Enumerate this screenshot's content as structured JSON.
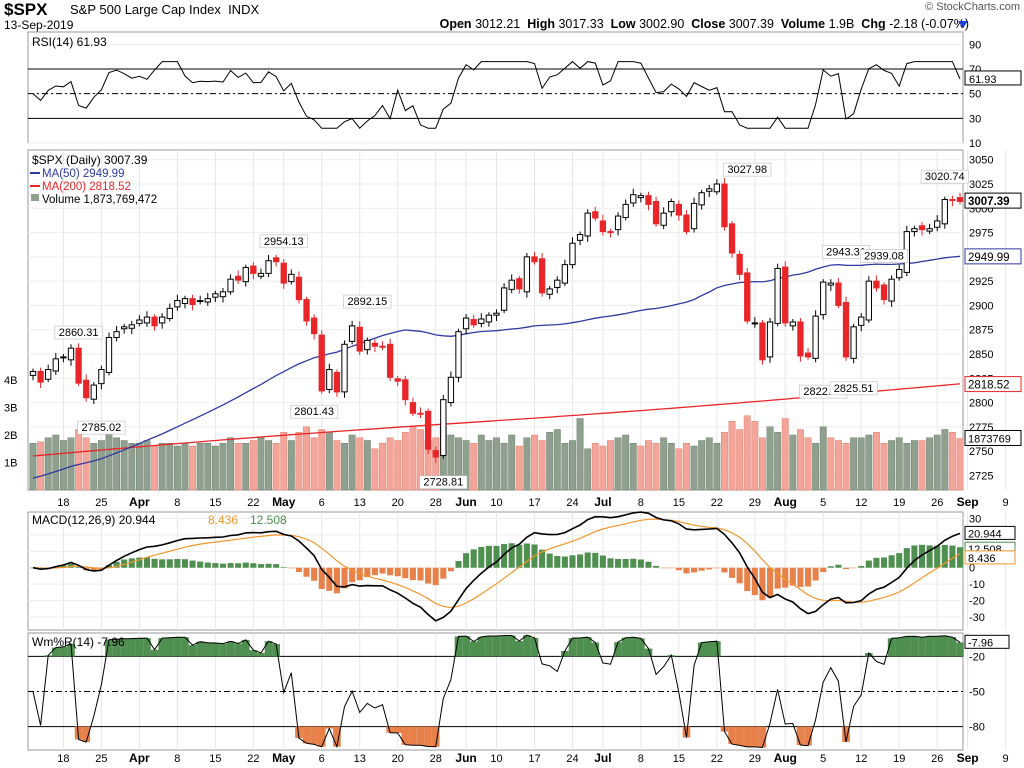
{
  "header": {
    "symbol": "$SPX",
    "name": "S&P 500 Large Cap Index",
    "exchange": "INDX",
    "date": "13-Sep-2019",
    "credit": "© StockCharts.com",
    "open_label": "Open",
    "open": "3012.21",
    "high_label": "High",
    "high": "3017.33",
    "low_label": "Low",
    "low": "3002.90",
    "close_label": "Close",
    "close": "3007.39",
    "volume_label": "Volume",
    "volume": "1.9B",
    "chg_label": "Chg",
    "chg": "-2.18 (-0.07%)"
  },
  "colors": {
    "up": "#000000",
    "down": "#e8262a",
    "ma50": "#2f3aa0",
    "ma200": "#e8262a",
    "vol_up": "#8fa08f",
    "vol_down": "#f4a59a",
    "macd_hist_pos": "#4f8f4f",
    "macd_hist_neg": "#e8804a",
    "signal": "#f0962e",
    "wr_fill_hi": "#4f8f4f",
    "wr_fill_lo": "#e8804a"
  },
  "chart_data": [
    {
      "panel": "RSI",
      "type": "line",
      "legend": "RSI(14) 61.93",
      "ylim": [
        10,
        100
      ],
      "yticks": [
        "90",
        "70",
        "50",
        "30",
        "10"
      ],
      "reference_lines": [
        70,
        50,
        30
      ],
      "last_value": "61.93"
    },
    {
      "panel": "Price",
      "type": "candlestick",
      "legend": [
        "$SPX (Daily) 3007.39",
        "MA(50) 2949.99",
        "MA(200) 2818.52",
        "Volume 1,873,769,472"
      ],
      "ylim": [
        2710,
        3060
      ],
      "yticks": [
        "3050",
        "3025",
        "3000",
        "2975",
        "2950",
        "2925",
        "2900",
        "2875",
        "2850",
        "2825",
        "2800",
        "2775",
        "2750",
        "2725"
      ],
      "volume_ticks": [
        "4B",
        "3B",
        "2B",
        "1B"
      ],
      "x_labels": [
        "18",
        "25",
        "Apr",
        "8",
        "15",
        "22",
        "May",
        "6",
        "13",
        "20",
        "28",
        "Jun",
        "10",
        "17",
        "24",
        "Jul",
        "8",
        "15",
        "22",
        "29",
        "Aug",
        "5",
        "12",
        "19",
        "26",
        "Sep",
        "9"
      ],
      "annotations": [
        "2860.31",
        "2785.02",
        "2954.13",
        "2892.15",
        "2801.43",
        "2728.81",
        "3027.98",
        "2943.31",
        "2939.08",
        "2822.12",
        "2825.51",
        "3020.74"
      ],
      "last_labels": {
        "close": "3007.39",
        "ma50": "2949.99",
        "ma200": "2818.52",
        "volume": "1873769"
      },
      "close": [
        2832,
        2821,
        2834,
        2845,
        2847,
        2856,
        2820,
        2805,
        2818,
        2834,
        2867,
        2873,
        2878,
        2880,
        2885,
        2888,
        2879,
        2888,
        2897,
        2905,
        2907,
        2901,
        2905,
        2907,
        2912,
        2914,
        2927,
        2926,
        2939,
        2933,
        2933,
        2946,
        2945,
        2923,
        2932,
        2906,
        2884,
        2871,
        2812,
        2834,
        2811,
        2860,
        2879,
        2853,
        2864,
        2858,
        2857,
        2826,
        2822,
        2803,
        2789,
        2788,
        2752,
        2744,
        2803,
        2826,
        2873,
        2887,
        2880,
        2886,
        2890,
        2892,
        2918,
        2926,
        2917,
        2950,
        2945,
        2913,
        2917,
        2926,
        2942,
        2964,
        2973,
        2995,
        2990,
        2976,
        2975,
        2992,
        3004,
        3014,
        3013,
        3004,
        2984,
        2995,
        3007,
        2993,
        2976,
        3005,
        3016,
        3020,
        3025,
        2981,
        2954,
        2932,
        2884,
        2882,
        2844,
        2883,
        2938,
        2882,
        2883,
        2848,
        2847,
        2889,
        2924,
        2923,
        2900,
        2847,
        2878,
        2888,
        2925,
        2918,
        2906,
        2927,
        2937,
        2976,
        2979,
        2978,
        2979,
        2987,
        3009,
        3008,
        3007
      ],
      "volume_millions": [
        1700,
        1750,
        1900,
        2000,
        1800,
        1900,
        2200,
        1900,
        1700,
        1800,
        2100,
        1900,
        1800,
        1700,
        1700,
        1800,
        1600,
        1700,
        1700,
        1600,
        1700,
        1600,
        1700,
        1700,
        1600,
        1700,
        1900,
        1700,
        1700,
        1800,
        1900,
        1800,
        1700,
        2100,
        1800,
        2100,
        2300,
        1900,
        2200,
        2100,
        1800,
        1700,
        2000,
        1900,
        1800,
        1500,
        1700,
        1900,
        1800,
        2100,
        2300,
        2200,
        1800,
        1900,
        2300,
        2000,
        1900,
        1800,
        1700,
        2000,
        1800,
        1900,
        1700,
        2000,
        1600,
        1900,
        2000,
        1800,
        2100,
        2200,
        1700,
        1800,
        2600,
        1500,
        1700,
        1600,
        1800,
        1900,
        2000,
        1700,
        1600,
        1800,
        1700,
        1900,
        1700,
        1500,
        1700,
        1600,
        1800,
        1900,
        1700,
        2100,
        2500,
        2200,
        2700,
        2500,
        1900,
        2300,
        2100,
        2600,
        2000,
        2200,
        1900,
        1700,
        2300,
        1900,
        1800,
        1700,
        1900,
        1900,
        2000,
        2100,
        1700,
        1800,
        1900,
        1700,
        1800,
        1800,
        1900,
        2000,
        2200,
        2100,
        1874
      ]
    },
    {
      "panel": "MACD",
      "type": "line",
      "legend": [
        "MACD(12,26,9) 20.944",
        "8.436",
        "12.508"
      ],
      "ylim": [
        -38,
        34
      ],
      "yticks": [
        "30",
        "20",
        "10",
        "0",
        "-10",
        "-20",
        "-30"
      ],
      "last_labels": {
        "macd": "20.944",
        "hist": "12.508",
        "signal": "8.436"
      }
    },
    {
      "panel": "Williams %R",
      "type": "line",
      "legend": "Wm%R(14) -7.96",
      "ylim": [
        -100,
        0
      ],
      "yticks": [
        "-20",
        "-50",
        "-80"
      ],
      "reference_lines": [
        -20,
        -50,
        -80
      ],
      "last_value": "-7.96"
    }
  ]
}
